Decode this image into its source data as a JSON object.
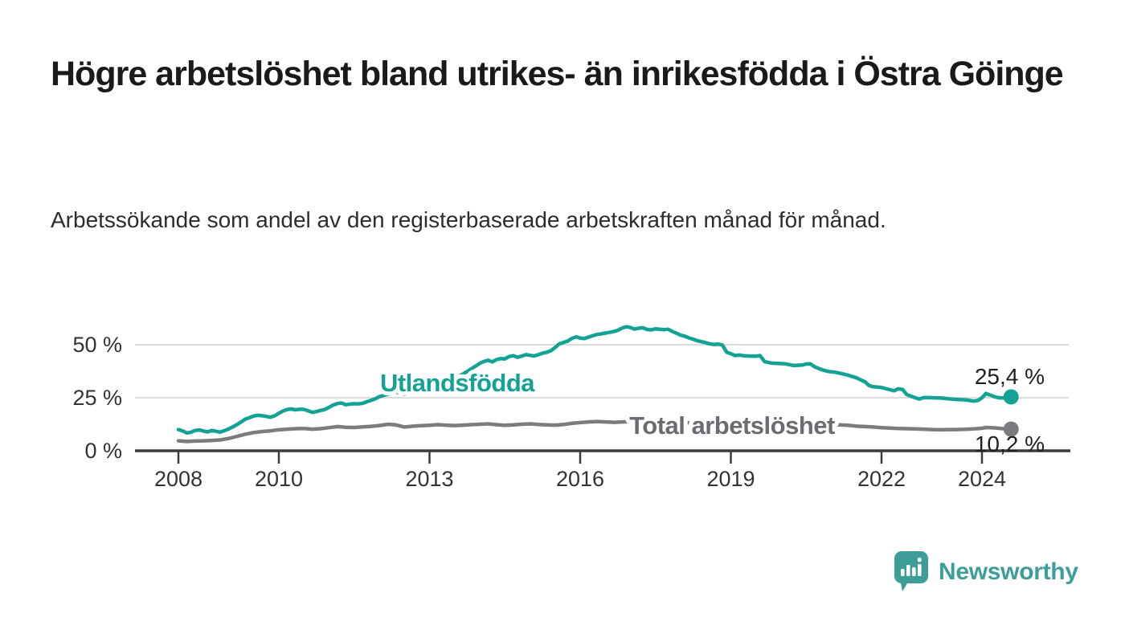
{
  "header": {
    "title": "Högre arbetslöshet bland utrikes- än inrikesfödda i Östra Göinge",
    "subtitle": "Arbetssökande som andel av den registerbaserade arbetskraften månad för månad."
  },
  "chart_data": {
    "type": "line",
    "unit": "%",
    "grid_color": "#dcdcdc",
    "axis_color": "#3b3b3b",
    "tick_text_color": "#333333",
    "value_label_color": "#1f1f1f",
    "y_axis": {
      "range": [
        0,
        62
      ],
      "ticks": [
        {
          "value": 0,
          "label": "0 %"
        },
        {
          "value": 25,
          "label": "25 %"
        },
        {
          "value": 50,
          "label": "50 %"
        }
      ]
    },
    "x_axis": {
      "range": [
        2007.1,
        2025.7
      ],
      "ticks": [
        {
          "value": 2008,
          "label": "2008"
        },
        {
          "value": 2010,
          "label": "2010"
        },
        {
          "value": 2013,
          "label": "2013"
        },
        {
          "value": 2016,
          "label": "2016"
        },
        {
          "value": 2019,
          "label": "2019"
        },
        {
          "value": 2022,
          "label": "2022"
        },
        {
          "value": 2024,
          "label": "2024"
        }
      ]
    },
    "series": [
      {
        "name": "Utlandsfödda",
        "color": "#13a294",
        "label_color": "#13a294",
        "end_label": "25,4 %",
        "end_value": 25.4,
        "points": [
          [
            2008.0,
            10.0
          ],
          [
            2008.08,
            9.4
          ],
          [
            2008.17,
            8.4
          ],
          [
            2008.25,
            8.7
          ],
          [
            2008.33,
            9.6
          ],
          [
            2008.42,
            9.8
          ],
          [
            2008.5,
            9.3
          ],
          [
            2008.58,
            8.9
          ],
          [
            2008.67,
            9.6
          ],
          [
            2008.75,
            9.2
          ],
          [
            2008.83,
            8.8
          ],
          [
            2008.92,
            9.5
          ],
          [
            2009.0,
            10.3
          ],
          [
            2009.08,
            11.2
          ],
          [
            2009.17,
            12.4
          ],
          [
            2009.25,
            13.6
          ],
          [
            2009.33,
            14.9
          ],
          [
            2009.42,
            15.7
          ],
          [
            2009.5,
            16.4
          ],
          [
            2009.58,
            16.7
          ],
          [
            2009.67,
            16.5
          ],
          [
            2009.75,
            16.2
          ],
          [
            2009.83,
            15.8
          ],
          [
            2009.92,
            16.5
          ],
          [
            2010.0,
            17.7
          ],
          [
            2010.08,
            18.7
          ],
          [
            2010.17,
            19.5
          ],
          [
            2010.25,
            19.7
          ],
          [
            2010.33,
            19.3
          ],
          [
            2010.42,
            19.6
          ],
          [
            2010.5,
            19.5
          ],
          [
            2010.58,
            18.9
          ],
          [
            2010.67,
            18.1
          ],
          [
            2010.75,
            18.5
          ],
          [
            2010.83,
            19.0
          ],
          [
            2010.92,
            19.5
          ],
          [
            2011.0,
            20.5
          ],
          [
            2011.08,
            21.5
          ],
          [
            2011.17,
            22.3
          ],
          [
            2011.25,
            22.5
          ],
          [
            2011.33,
            21.7
          ],
          [
            2011.42,
            22.0
          ],
          [
            2011.5,
            22.2
          ],
          [
            2011.58,
            22.1
          ],
          [
            2011.67,
            22.4
          ],
          [
            2011.75,
            23.1
          ],
          [
            2011.83,
            23.7
          ],
          [
            2011.92,
            24.5
          ],
          [
            2012.0,
            25.5
          ],
          [
            2012.08,
            26.1
          ],
          [
            2012.17,
            26.6
          ],
          [
            2012.25,
            27.2
          ],
          [
            2012.33,
            27.7
          ],
          [
            2012.42,
            27.2
          ],
          [
            2012.5,
            26.7
          ],
          [
            2012.58,
            27.4
          ],
          [
            2012.67,
            28.4
          ],
          [
            2012.75,
            28.7
          ],
          [
            2012.83,
            28.3
          ],
          [
            2012.92,
            28.9
          ],
          [
            2013.0,
            29.7
          ],
          [
            2013.17,
            31.0
          ],
          [
            2013.33,
            32.4
          ],
          [
            2013.5,
            34.0
          ],
          [
            2013.67,
            36.2
          ],
          [
            2013.83,
            38.6
          ],
          [
            2014.0,
            41.2
          ],
          [
            2014.08,
            42.1
          ],
          [
            2014.17,
            42.7
          ],
          [
            2014.25,
            41.9
          ],
          [
            2014.33,
            42.9
          ],
          [
            2014.42,
            43.5
          ],
          [
            2014.5,
            43.3
          ],
          [
            2014.58,
            44.4
          ],
          [
            2014.67,
            44.8
          ],
          [
            2014.75,
            44.1
          ],
          [
            2014.83,
            44.6
          ],
          [
            2014.92,
            45.3
          ],
          [
            2015.0,
            45.0
          ],
          [
            2015.08,
            44.7
          ],
          [
            2015.17,
            45.3
          ],
          [
            2015.25,
            46.0
          ],
          [
            2015.33,
            46.4
          ],
          [
            2015.42,
            47.2
          ],
          [
            2015.5,
            48.7
          ],
          [
            2015.58,
            50.3
          ],
          [
            2015.67,
            51.1
          ],
          [
            2015.75,
            51.7
          ],
          [
            2015.83,
            52.9
          ],
          [
            2015.92,
            53.7
          ],
          [
            2016.0,
            53.1
          ],
          [
            2016.08,
            52.9
          ],
          [
            2016.17,
            53.6
          ],
          [
            2016.25,
            54.2
          ],
          [
            2016.33,
            54.8
          ],
          [
            2016.42,
            55.1
          ],
          [
            2016.5,
            55.5
          ],
          [
            2016.58,
            55.8
          ],
          [
            2016.67,
            56.2
          ],
          [
            2016.75,
            56.8
          ],
          [
            2016.83,
            57.8
          ],
          [
            2016.92,
            58.5
          ],
          [
            2017.0,
            58.1
          ],
          [
            2017.08,
            57.4
          ],
          [
            2017.17,
            57.8
          ],
          [
            2017.25,
            58.0
          ],
          [
            2017.33,
            57.2
          ],
          [
            2017.42,
            57.0
          ],
          [
            2017.5,
            57.5
          ],
          [
            2017.58,
            57.3
          ],
          [
            2017.67,
            57.1
          ],
          [
            2017.75,
            57.3
          ],
          [
            2017.83,
            56.3
          ],
          [
            2017.92,
            55.4
          ],
          [
            2018.0,
            54.5
          ],
          [
            2018.08,
            54.0
          ],
          [
            2018.17,
            53.2
          ],
          [
            2018.25,
            52.6
          ],
          [
            2018.33,
            51.9
          ],
          [
            2018.42,
            51.4
          ],
          [
            2018.5,
            50.9
          ],
          [
            2018.58,
            50.4
          ],
          [
            2018.67,
            50.1
          ],
          [
            2018.75,
            50.3
          ],
          [
            2018.83,
            49.9
          ],
          [
            2018.92,
            46.4
          ],
          [
            2019.0,
            45.8
          ],
          [
            2019.08,
            44.9
          ],
          [
            2019.17,
            45.1
          ],
          [
            2019.25,
            44.8
          ],
          [
            2019.33,
            44.7
          ],
          [
            2019.42,
            44.6
          ],
          [
            2019.5,
            44.6
          ],
          [
            2019.58,
            44.9
          ],
          [
            2019.67,
            42.1
          ],
          [
            2019.75,
            41.6
          ],
          [
            2019.83,
            41.3
          ],
          [
            2019.92,
            41.2
          ],
          [
            2020.0,
            41.1
          ],
          [
            2020.08,
            41.0
          ],
          [
            2020.17,
            40.6
          ],
          [
            2020.25,
            40.2
          ],
          [
            2020.33,
            40.3
          ],
          [
            2020.42,
            40.4
          ],
          [
            2020.5,
            40.9
          ],
          [
            2020.58,
            41.0
          ],
          [
            2020.67,
            39.6
          ],
          [
            2020.75,
            38.8
          ],
          [
            2020.83,
            38.1
          ],
          [
            2020.92,
            37.5
          ],
          [
            2021.0,
            37.2
          ],
          [
            2021.08,
            37.0
          ],
          [
            2021.17,
            36.6
          ],
          [
            2021.25,
            36.1
          ],
          [
            2021.33,
            35.7
          ],
          [
            2021.42,
            35.0
          ],
          [
            2021.5,
            34.4
          ],
          [
            2021.58,
            33.5
          ],
          [
            2021.67,
            32.5
          ],
          [
            2021.75,
            30.8
          ],
          [
            2021.83,
            30.2
          ],
          [
            2021.92,
            30.0
          ],
          [
            2022.0,
            29.8
          ],
          [
            2022.08,
            29.3
          ],
          [
            2022.17,
            28.8
          ],
          [
            2022.25,
            28.3
          ],
          [
            2022.33,
            29.2
          ],
          [
            2022.42,
            28.9
          ],
          [
            2022.5,
            26.5
          ],
          [
            2022.58,
            25.8
          ],
          [
            2022.67,
            25.0
          ],
          [
            2022.75,
            24.4
          ],
          [
            2022.83,
            25.0
          ],
          [
            2022.92,
            25.1
          ],
          [
            2023.0,
            25.0
          ],
          [
            2023.08,
            24.9
          ],
          [
            2023.17,
            24.9
          ],
          [
            2023.25,
            24.7
          ],
          [
            2023.33,
            24.5
          ],
          [
            2023.42,
            24.3
          ],
          [
            2023.5,
            24.2
          ],
          [
            2023.58,
            24.1
          ],
          [
            2023.67,
            24.0
          ],
          [
            2023.75,
            23.7
          ],
          [
            2023.83,
            23.4
          ],
          [
            2023.92,
            23.7
          ],
          [
            2024.0,
            25.0
          ],
          [
            2024.08,
            27.0
          ],
          [
            2024.17,
            26.2
          ],
          [
            2024.25,
            25.5
          ],
          [
            2024.33,
            25.0
          ],
          [
            2024.42,
            24.9
          ],
          [
            2024.5,
            25.2
          ],
          [
            2024.58,
            25.4
          ]
        ]
      },
      {
        "name": "Total arbetslöshet",
        "color": "#7b7b80",
        "label_color": "#6b6b72",
        "end_label": "10,2 %",
        "end_value": 10.2,
        "points": [
          [
            2008.0,
            4.7
          ],
          [
            2008.17,
            4.4
          ],
          [
            2008.33,
            4.6
          ],
          [
            2008.5,
            4.7
          ],
          [
            2008.67,
            4.9
          ],
          [
            2008.83,
            5.1
          ],
          [
            2009.0,
            5.8
          ],
          [
            2009.17,
            6.8
          ],
          [
            2009.33,
            7.8
          ],
          [
            2009.5,
            8.6
          ],
          [
            2009.67,
            9.1
          ],
          [
            2009.83,
            9.4
          ],
          [
            2010.0,
            9.9
          ],
          [
            2010.17,
            10.2
          ],
          [
            2010.33,
            10.4
          ],
          [
            2010.5,
            10.5
          ],
          [
            2010.67,
            10.2
          ],
          [
            2010.83,
            10.4
          ],
          [
            2011.0,
            10.9
          ],
          [
            2011.17,
            11.4
          ],
          [
            2011.33,
            11.1
          ],
          [
            2011.5,
            11.0
          ],
          [
            2011.67,
            11.3
          ],
          [
            2011.83,
            11.5
          ],
          [
            2012.0,
            11.9
          ],
          [
            2012.17,
            12.5
          ],
          [
            2012.33,
            12.2
          ],
          [
            2012.5,
            11.2
          ],
          [
            2012.67,
            11.6
          ],
          [
            2012.83,
            11.8
          ],
          [
            2013.0,
            12.0
          ],
          [
            2013.17,
            12.3
          ],
          [
            2013.33,
            12.1
          ],
          [
            2013.5,
            11.9
          ],
          [
            2013.67,
            12.1
          ],
          [
            2013.83,
            12.3
          ],
          [
            2014.0,
            12.5
          ],
          [
            2014.17,
            12.7
          ],
          [
            2014.33,
            12.3
          ],
          [
            2014.5,
            12.0
          ],
          [
            2014.67,
            12.2
          ],
          [
            2014.83,
            12.5
          ],
          [
            2015.0,
            12.7
          ],
          [
            2015.17,
            12.4
          ],
          [
            2015.33,
            12.2
          ],
          [
            2015.5,
            12.1
          ],
          [
            2015.67,
            12.4
          ],
          [
            2015.83,
            12.9
          ],
          [
            2016.0,
            13.3
          ],
          [
            2016.17,
            13.6
          ],
          [
            2016.33,
            13.8
          ],
          [
            2016.5,
            13.6
          ],
          [
            2016.67,
            13.4
          ],
          [
            2016.83,
            13.6
          ],
          [
            2017.0,
            13.7
          ],
          [
            2017.25,
            13.5
          ],
          [
            2017.5,
            13.4
          ],
          [
            2017.75,
            13.5
          ],
          [
            2018.0,
            13.3
          ],
          [
            2018.25,
            13.1
          ],
          [
            2018.5,
            12.9
          ],
          [
            2018.75,
            12.7
          ],
          [
            2019.0,
            12.5
          ],
          [
            2019.25,
            12.4
          ],
          [
            2019.5,
            12.3
          ],
          [
            2019.75,
            12.4
          ],
          [
            2020.0,
            12.5
          ],
          [
            2020.25,
            12.6
          ],
          [
            2020.5,
            12.7
          ],
          [
            2020.75,
            12.5
          ],
          [
            2021.0,
            12.3
          ],
          [
            2021.17,
            12.2
          ],
          [
            2021.33,
            12.0
          ],
          [
            2021.5,
            11.6
          ],
          [
            2021.67,
            11.4
          ],
          [
            2021.83,
            11.2
          ],
          [
            2022.0,
            10.9
          ],
          [
            2022.17,
            10.7
          ],
          [
            2022.33,
            10.5
          ],
          [
            2022.5,
            10.4
          ],
          [
            2022.67,
            10.3
          ],
          [
            2022.83,
            10.2
          ],
          [
            2023.0,
            10.0
          ],
          [
            2023.17,
            9.9
          ],
          [
            2023.33,
            10.0
          ],
          [
            2023.5,
            10.0
          ],
          [
            2023.67,
            10.1
          ],
          [
            2023.83,
            10.3
          ],
          [
            2024.0,
            10.6
          ],
          [
            2024.08,
            11.0
          ],
          [
            2024.25,
            10.8
          ],
          [
            2024.42,
            10.4
          ],
          [
            2024.58,
            10.2
          ]
        ]
      }
    ]
  },
  "branding": {
    "name": "Newsworthy",
    "color": "#3d9e99",
    "icon": "newsworthy-speech-bubble-chart-icon"
  }
}
